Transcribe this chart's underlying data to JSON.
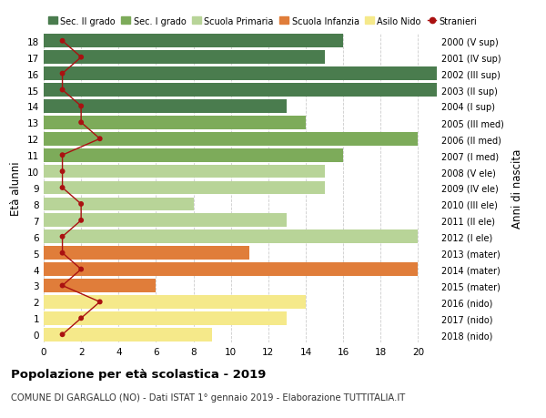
{
  "ages": [
    18,
    17,
    16,
    15,
    14,
    13,
    12,
    11,
    10,
    9,
    8,
    7,
    6,
    5,
    4,
    3,
    2,
    1,
    0
  ],
  "right_labels": [
    "2000 (V sup)",
    "2001 (IV sup)",
    "2002 (III sup)",
    "2003 (II sup)",
    "2004 (I sup)",
    "2005 (III med)",
    "2006 (II med)",
    "2007 (I med)",
    "2008 (V ele)",
    "2009 (IV ele)",
    "2010 (III ele)",
    "2011 (II ele)",
    "2012 (I ele)",
    "2013 (mater)",
    "2014 (mater)",
    "2015 (mater)",
    "2016 (nido)",
    "2017 (nido)",
    "2018 (nido)"
  ],
  "bar_values": [
    16,
    15,
    21,
    21,
    13,
    14,
    20,
    16,
    15,
    15,
    8,
    13,
    20,
    11,
    20,
    6,
    14,
    13,
    9
  ],
  "bar_colors": [
    "#4a7c4e",
    "#4a7c4e",
    "#4a7c4e",
    "#4a7c4e",
    "#4a7c4e",
    "#7dab5a",
    "#7dab5a",
    "#7dab5a",
    "#b8d498",
    "#b8d498",
    "#b8d498",
    "#b8d498",
    "#b8d498",
    "#e07d3a",
    "#e07d3a",
    "#e07d3a",
    "#f5e98a",
    "#f5e98a",
    "#f5e98a"
  ],
  "stranieri_values": [
    1,
    2,
    1,
    1,
    2,
    2,
    3,
    1,
    1,
    1,
    2,
    2,
    1,
    1,
    2,
    1,
    3,
    2,
    1
  ],
  "stranieri_color": "#aa1111",
  "legend_labels": [
    "Sec. II grado",
    "Sec. I grado",
    "Scuola Primaria",
    "Scuola Infanzia",
    "Asilo Nido",
    "Stranieri"
  ],
  "legend_colors": [
    "#4a7c4e",
    "#7dab5a",
    "#b8d498",
    "#e07d3a",
    "#f5e98a",
    "#aa1111"
  ],
  "ylabel_left": "Età alunni",
  "ylabel_right": "Anni di nascita",
  "title_bold": "Popolazione per età scolastica - 2019",
  "subtitle": "COMUNE DI GARGALLO (NO) - Dati ISTAT 1° gennaio 2019 - Elaborazione TUTTITALIA.IT",
  "xlim": [
    0,
    21
  ],
  "ylim": [
    -0.5,
    18.5
  ],
  "xticks": [
    0,
    2,
    4,
    6,
    8,
    10,
    12,
    14,
    16,
    18,
    20
  ],
  "bg_color": "#ffffff",
  "grid_color": "#cccccc"
}
